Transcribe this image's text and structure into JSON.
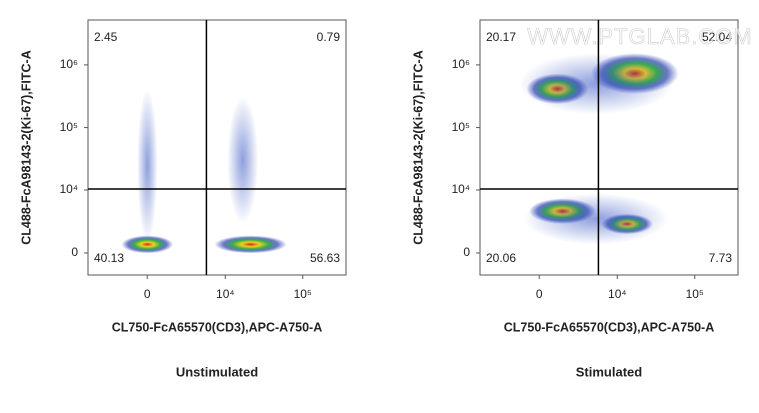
{
  "chart_data": [
    {
      "type": "density",
      "title": "Unstimulated",
      "xlabel": "CL750-FcA65570(CD3),APC-A750-A",
      "ylabel": "CL488-FcA98143-2(Ki-67),FITC-A",
      "xscale": "biexponential",
      "yscale": "biexponential",
      "xlim": [
        -5600,
        360000
      ],
      "ylim": [
        -1800,
        5200000
      ],
      "xticks": [
        0,
        {
          "value": 10000,
          "label": "10⁴"
        },
        {
          "value": 100000,
          "label": "10⁵"
        }
      ],
      "yticks": [
        0,
        {
          "value": 10000,
          "label": "10⁴"
        },
        {
          "value": 100000,
          "label": "10⁵"
        },
        {
          "value": 1000000,
          "label": "10⁶"
        }
      ],
      "gate": {
        "x": 5600,
        "y": 10400
      },
      "quadrants": {
        "top_left": 2.45,
        "top_right": 0.79,
        "bottom_left": 40.13,
        "bottom_right": 56.63
      }
    },
    {
      "type": "density",
      "title": "Stimulated",
      "xlabel": "CL750-FcA65570(CD3),APC-A750-A",
      "ylabel": "CL488-FcA98143-2(Ki-67),FITC-A",
      "xscale": "biexponential",
      "yscale": "biexponential",
      "xlim": [
        -5600,
        360000
      ],
      "ylim": [
        -1800,
        5200000
      ],
      "xticks": [
        0,
        {
          "value": 10000,
          "label": "10⁴"
        },
        {
          "value": 100000,
          "label": "10⁵"
        }
      ],
      "yticks": [
        0,
        {
          "value": 10000,
          "label": "10⁴"
        },
        {
          "value": 100000,
          "label": "10⁵"
        },
        {
          "value": 1000000,
          "label": "10⁶"
        }
      ],
      "gate": {
        "x": 5600,
        "y": 10400
      },
      "quadrants": {
        "top_left": 20.17,
        "top_right": 52.04,
        "bottom_left": 20.06,
        "bottom_right": 7.73
      },
      "watermark": "WWW.PTGLAB.COM"
    }
  ]
}
